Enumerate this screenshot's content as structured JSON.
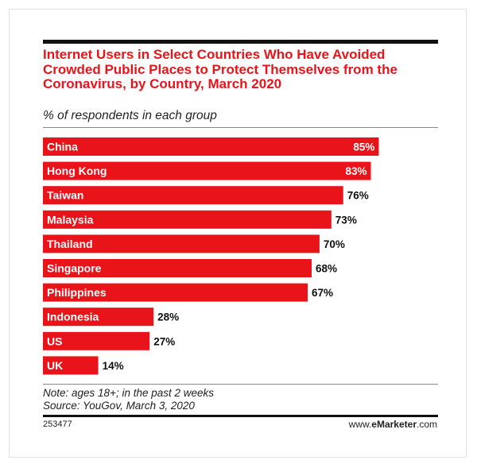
{
  "chart_data": {
    "type": "bar",
    "orientation": "horizontal",
    "title": "Internet Users in Select Countries Who Have Avoided Crowded Public Places to Protect Themselves from the Coronavirus, by Country, March 2020",
    "subtitle": "% of respondents in each group",
    "categories": [
      "China",
      "Hong Kong",
      "Taiwan",
      "Malaysia",
      "Thailand",
      "Singapore",
      "Philippines",
      "Indonesia",
      "US",
      "UK"
    ],
    "values": [
      85,
      83,
      76,
      73,
      70,
      68,
      67,
      28,
      27,
      14
    ],
    "value_labels": [
      "85%",
      "83%",
      "76%",
      "73%",
      "70%",
      "68%",
      "67%",
      "28%",
      "27%",
      "14%"
    ],
    "xlim": [
      0,
      100
    ],
    "grid": false,
    "legend": "none",
    "bar_color": "#e8141a"
  },
  "footer": {
    "note": "Note: ages 18+; in the past 2 weeks",
    "source": "Source: YouGov, March 3, 2020",
    "chart_id": "253477",
    "brand_prefix": "www.",
    "brand_bold": "eMarketer",
    "brand_suffix": ".com"
  }
}
